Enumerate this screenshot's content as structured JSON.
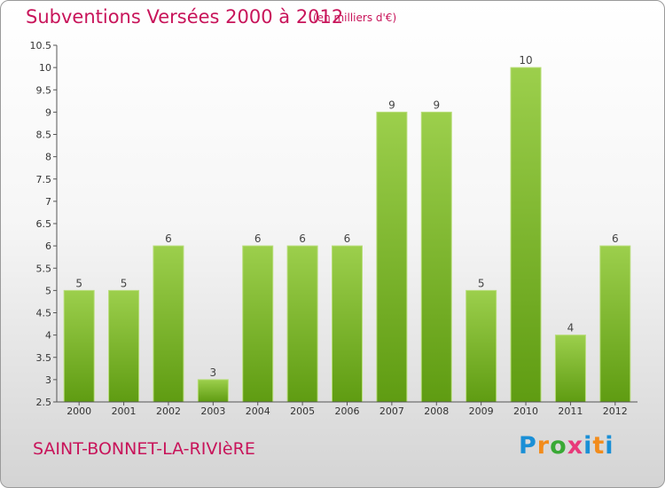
{
  "header": {
    "title": "Subventions Versées 2000 à 2012",
    "subtitle": "(en milliers d'€)"
  },
  "footer": {
    "commune": "SAINT-BONNET-LA-RIVIèRE",
    "logo_letters": [
      "P",
      "r",
      "o",
      "x",
      "i",
      "t",
      "i"
    ]
  },
  "colors": {
    "title": "#c8145a",
    "bar_top": "#9ccf4c",
    "bar_bottom": "#5f9c12"
  },
  "chart_data": {
    "type": "bar",
    "title": "Subventions Versées 2000 à 2012",
    "subtitle": "(en milliers d'€)",
    "xlabel": "",
    "ylabel": "",
    "categories": [
      "2000",
      "2001",
      "2002",
      "2003",
      "2004",
      "2005",
      "2006",
      "2007",
      "2008",
      "2009",
      "2010",
      "2011",
      "2012"
    ],
    "values": [
      5,
      5,
      6,
      3,
      6,
      6,
      6,
      9,
      9,
      5,
      10,
      4,
      6
    ],
    "ylim": [
      2.5,
      10.5
    ],
    "yticks": [
      "2.5",
      "3",
      "3.5",
      "4",
      "4.5",
      "5",
      "5.5",
      "6",
      "6.5",
      "7",
      "7.5",
      "8",
      "8.5",
      "9",
      "9.5",
      "10",
      "10.5"
    ],
    "grid": false,
    "legend": "none"
  }
}
